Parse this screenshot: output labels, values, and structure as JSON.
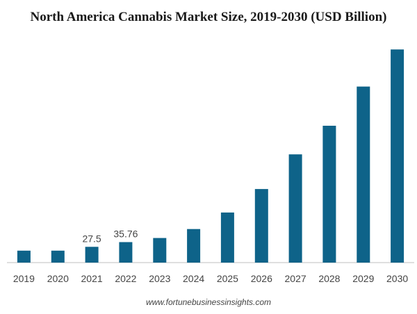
{
  "chart_data": {
    "type": "bar",
    "title": "North America Cannabis Market Size, 2019-2030 (USD Billion)",
    "xlabel": "",
    "ylabel": "",
    "categories": [
      "2019",
      "2020",
      "2021",
      "2022",
      "2023",
      "2024",
      "2025",
      "2026",
      "2027",
      "2028",
      "2029",
      "2030"
    ],
    "values": [
      20.8,
      20.8,
      27.5,
      35.76,
      42.8,
      58.4,
      87.2,
      128.2,
      188.5,
      238.4,
      306.7,
      371.3
    ],
    "data_labels": [
      "",
      "",
      "27.5",
      "35.76",
      "",
      "",
      "",
      "",
      "",
      "",
      "",
      ""
    ],
    "ylim": [
      0,
      380
    ],
    "grid": false,
    "legend": "none",
    "bar_color": "#0e6389",
    "axis_color": "#bfbfbf"
  },
  "source": "www.fortunebusinessinsights.com"
}
